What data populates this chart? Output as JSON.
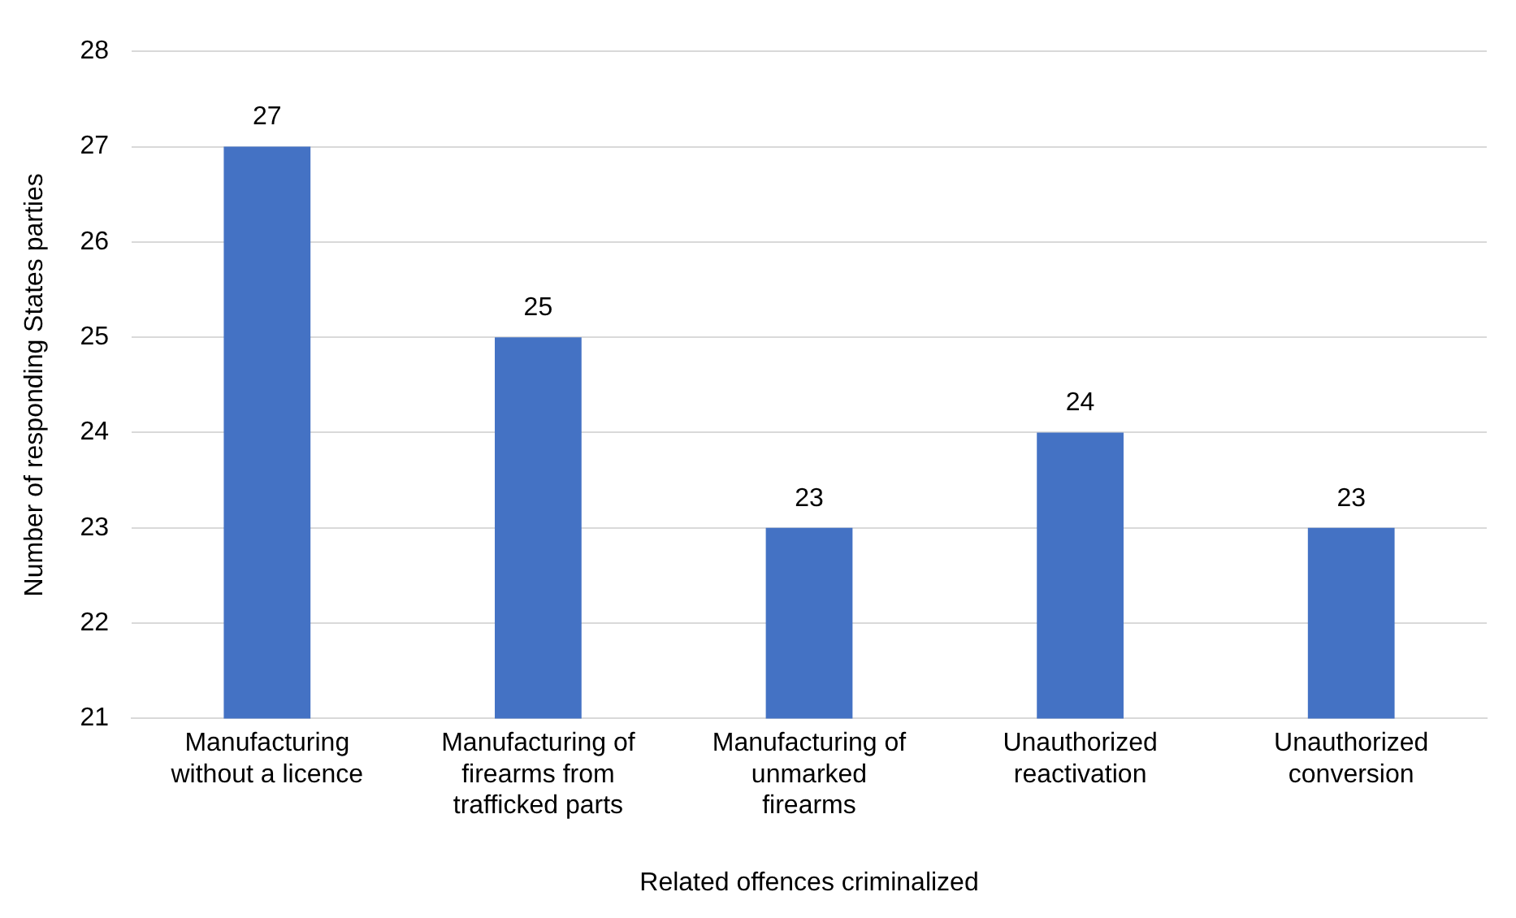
{
  "chart_data": {
    "type": "bar",
    "xlabel": "Related offences criminalized",
    "ylabel": "Number of responding States parties",
    "categories": [
      "Manufacturing\nwithout a licence",
      "Manufacturing of\nfirearms from\ntrafficked parts",
      "Manufacturing of\nunmarked\nfirearms",
      "Unauthorized\nreactivation",
      "Unauthorized\nconversion"
    ],
    "values": [
      27,
      25,
      23,
      24,
      23
    ],
    "color": "#4472c4",
    "ylim": [
      21,
      28
    ],
    "yticks": [
      21,
      22,
      23,
      24,
      25,
      26,
      27,
      28
    ],
    "grid": "y",
    "data_labels": true,
    "legend": false
  }
}
